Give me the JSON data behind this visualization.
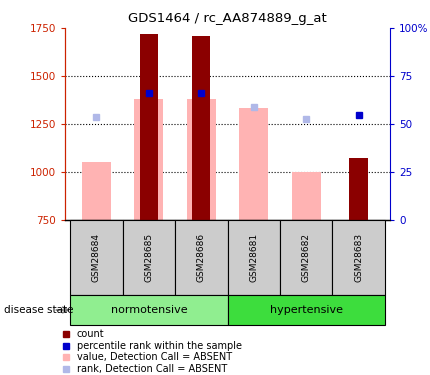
{
  "title": "GDS1464 / rc_AA874889_g_at",
  "samples": [
    "GSM28684",
    "GSM28685",
    "GSM28686",
    "GSM28681",
    "GSM28682",
    "GSM28683"
  ],
  "groups": [
    {
      "name": "normotensive",
      "color": "#90ee90",
      "indices": [
        0,
        1,
        2
      ]
    },
    {
      "name": "hypertensive",
      "color": "#3ddd3d",
      "indices": [
        3,
        4,
        5
      ]
    }
  ],
  "bar_bottom": 750,
  "count_bars": [
    null,
    1720,
    1710,
    null,
    null,
    1075
  ],
  "pink_bars": [
    1050,
    1380,
    1380,
    1335,
    1000,
    null
  ],
  "blue_squares": [
    null,
    1410,
    1410,
    null,
    null,
    1295
  ],
  "light_blue_squares": [
    1285,
    null,
    null,
    1340,
    1275,
    null
  ],
  "ylim": [
    750,
    1750
  ],
  "yticks_left": [
    750,
    1000,
    1250,
    1500,
    1750
  ],
  "yticks_right": [
    0,
    25,
    50,
    75,
    100
  ],
  "left_axis_color": "#cc2200",
  "right_axis_color": "#0000cc",
  "bar_color_dark_red": "#8b0000",
  "bar_color_pink": "#ffb3b3",
  "bar_color_blue": "#0000cc",
  "bar_color_light_blue": "#b0b8e8",
  "grid_lines": [
    1000,
    1250,
    1500
  ],
  "legend_items": [
    {
      "label": "count",
      "color": "#8b0000"
    },
    {
      "label": "percentile rank within the sample",
      "color": "#0000cc"
    },
    {
      "label": "value, Detection Call = ABSENT",
      "color": "#ffb3b3"
    },
    {
      "label": "rank, Detection Call = ABSENT",
      "color": "#b0b8e8"
    }
  ],
  "disease_state_label": "disease state"
}
